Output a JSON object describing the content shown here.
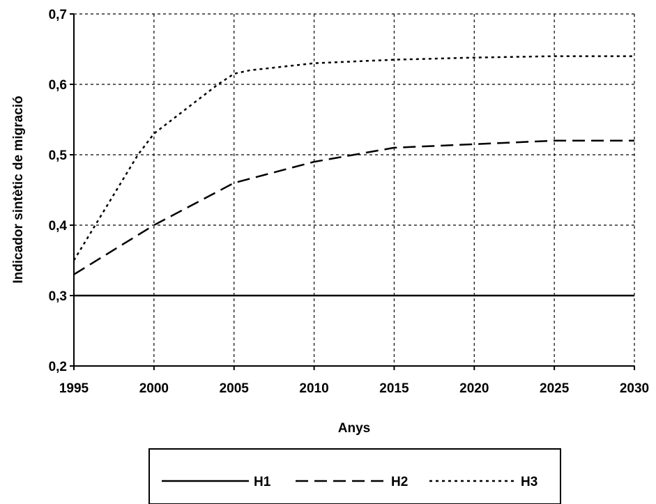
{
  "chart_data": {
    "type": "line",
    "title": "",
    "xlabel": "Anys",
    "ylabel": "Indicador sintètic de migració",
    "xlim": [
      1995,
      2030
    ],
    "ylim": [
      0.2,
      0.7
    ],
    "x_ticks": [
      1995,
      2000,
      2005,
      2010,
      2015,
      2020,
      2025,
      2030
    ],
    "x_tick_labels": [
      "1995",
      "2000",
      "2005",
      "2010",
      "2015",
      "2020",
      "2025",
      "2030"
    ],
    "y_ticks": [
      0.2,
      0.3,
      0.4,
      0.5,
      0.6,
      0.7
    ],
    "y_tick_labels": [
      "0,2",
      "0,3",
      "0,4",
      "0,5",
      "0,6",
      "0,7"
    ],
    "grid": true,
    "legend_position": "bottom",
    "series": [
      {
        "name": "H1",
        "style": "solid",
        "x": [
          1995,
          2000,
          2005,
          2010,
          2015,
          2020,
          2025,
          2030
        ],
        "values": [
          0.3,
          0.3,
          0.3,
          0.3,
          0.3,
          0.3,
          0.3,
          0.3
        ]
      },
      {
        "name": "H2",
        "style": "dashed",
        "x": [
          1995,
          2000,
          2005,
          2010,
          2015,
          2020,
          2025,
          2030
        ],
        "values": [
          0.33,
          0.4,
          0.46,
          0.49,
          0.51,
          0.515,
          0.52,
          0.52
        ]
      },
      {
        "name": "H3",
        "style": "dotted",
        "x": [
          1995,
          1999,
          2000,
          2004,
          2005,
          2006,
          2010,
          2015,
          2020,
          2025,
          2030
        ],
        "values": [
          0.35,
          0.5,
          0.53,
          0.6,
          0.615,
          0.62,
          0.63,
          0.635,
          0.638,
          0.64,
          0.64
        ]
      }
    ]
  },
  "colors": {
    "line": "#000000",
    "grid": "#000000",
    "background": "#ffffff"
  }
}
